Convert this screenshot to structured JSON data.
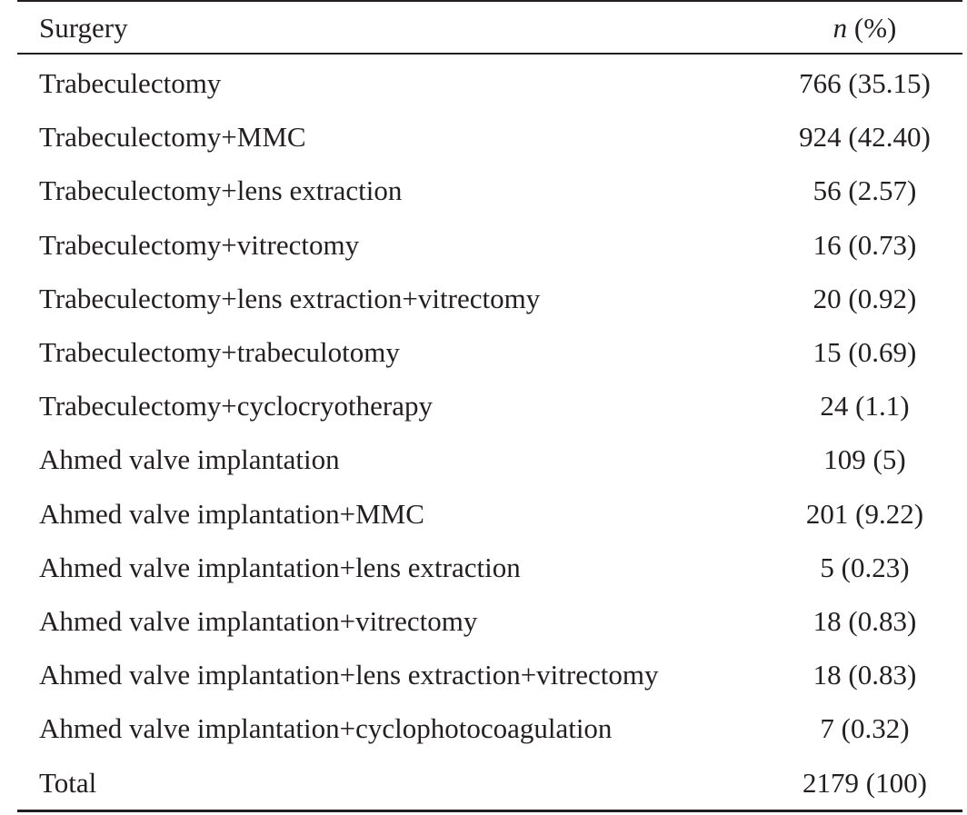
{
  "table": {
    "header": {
      "surgery": "Surgery",
      "n_italic": "n",
      "n_rest": " (%)"
    },
    "rows": [
      {
        "surgery": "Trabeculectomy",
        "n": "766 (35.15)"
      },
      {
        "surgery": "Trabeculectomy+MMC",
        "n": "924 (42.40)"
      },
      {
        "surgery": "Trabeculectomy+lens extraction",
        "n": "56 (2.57)"
      },
      {
        "surgery": "Trabeculectomy+vitrectomy",
        "n": "16 (0.73)"
      },
      {
        "surgery": "Trabeculectomy+lens extraction+vitrectomy",
        "n": "20 (0.92)"
      },
      {
        "surgery": "Trabeculectomy+trabeculotomy",
        "n": "15 (0.69)"
      },
      {
        "surgery": "Trabeculectomy+cyclocryotherapy",
        "n": "24 (1.1)"
      },
      {
        "surgery": "Ahmed valve implantation",
        "n": "109 (5)"
      },
      {
        "surgery": "Ahmed valve implantation+MMC",
        "n": "201 (9.22)"
      },
      {
        "surgery": "Ahmed valve implantation+lens extraction",
        "n": "5 (0.23)"
      },
      {
        "surgery": "Ahmed valve implantation+vitrectomy",
        "n": "18 (0.83)"
      },
      {
        "surgery": "Ahmed valve implantation+lens extraction+vitrectomy",
        "n": "18 (0.83)"
      },
      {
        "surgery": "Ahmed valve implantation+cyclophotocoagulation",
        "n": "7 (0.32)"
      },
      {
        "surgery": "Total",
        "n": "2179 (100)"
      }
    ]
  }
}
